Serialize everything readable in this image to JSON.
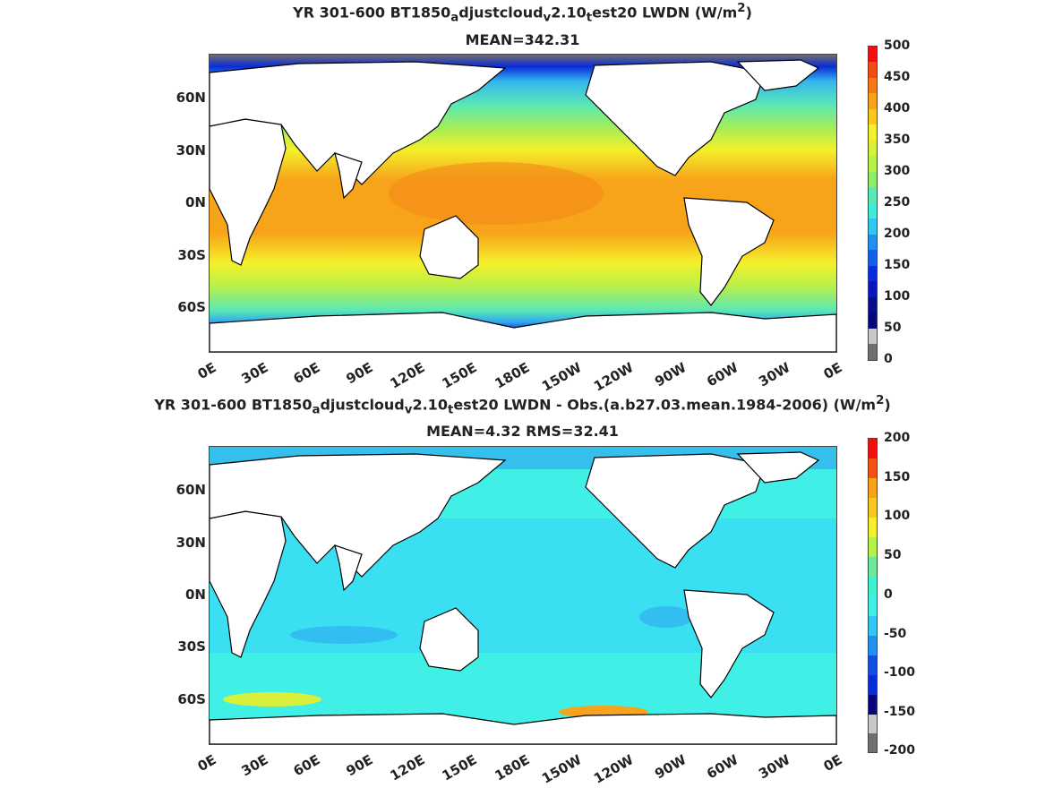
{
  "panel1": {
    "title_pre": "YR 301-600 BT1850",
    "sub1": "a",
    "mid1": "djustcloud",
    "sub2": "v",
    "mid2": "2.10",
    "sub3": "t",
    "title_post": "est20 LWDN (W/m",
    "sup": "2",
    "close": ")",
    "stat": "MEAN=342.31",
    "colorbar_labels": [
      "500",
      "450",
      "400",
      "350",
      "300",
      "250",
      "200",
      "150",
      "100",
      "50",
      "0"
    ]
  },
  "panel2": {
    "title_pre": "YR 301-600 BT1850",
    "sub1": "a",
    "mid1": "djustcloud",
    "sub2": "v",
    "mid2": "2.10",
    "sub3": "t",
    "title_post": "est20 LWDN - Obs.(a.b27.03.mean.1984-2006) (W/m",
    "sup": "2",
    "close": ")",
    "stat": "MEAN=4.32 RMS=32.41",
    "colorbar_labels": [
      "200",
      "150",
      "100",
      "50",
      "0",
      "-50",
      "-100",
      "-150",
      "-200"
    ]
  },
  "lat_labels": [
    "60N",
    "30N",
    "0N",
    "30S",
    "60S"
  ],
  "lon_labels": [
    "0E",
    "30E",
    "60E",
    "90E",
    "120E",
    "150E",
    "180E",
    "150W",
    "120W",
    "90W",
    "60W",
    "30W",
    "0E"
  ],
  "colors": {
    "ocean_mean": "#b8f04a",
    "tropics_mean": "#f7a21a",
    "ocean_diff": "#40f0e6",
    "land": "#ffffff",
    "coast": "#000000"
  }
}
